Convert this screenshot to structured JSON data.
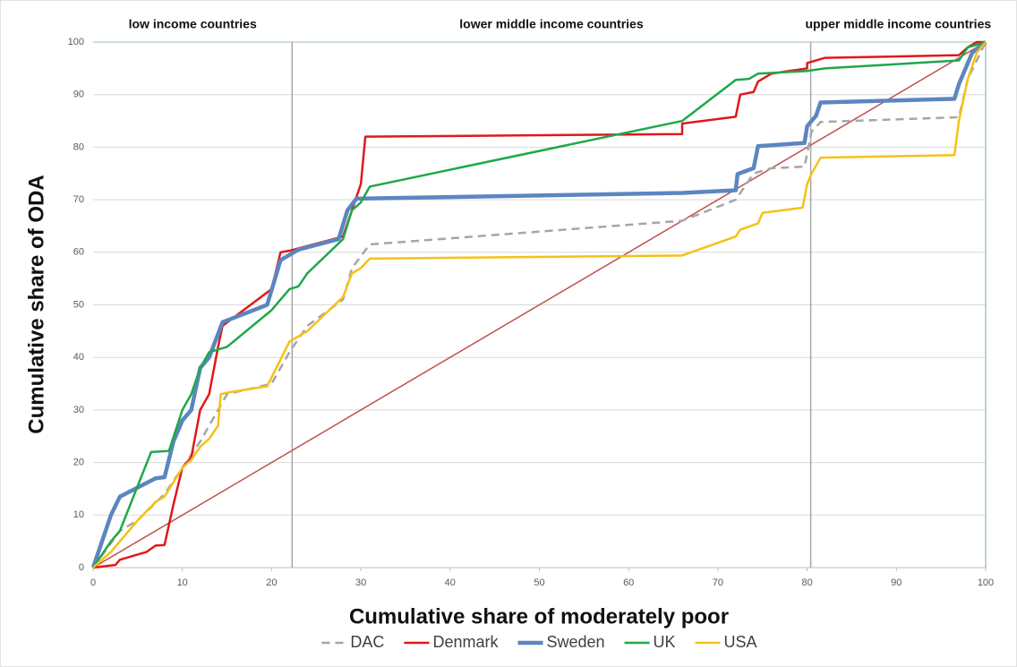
{
  "chart_data": {
    "type": "line",
    "x_label": "Cumulative share  of moderately poor",
    "y_label": "Cumulative share of ODA",
    "annotations": [
      "low income countries",
      "lower middle  income countries",
      "upper middle  income countries"
    ],
    "dividers": [
      22.3,
      80.4
    ],
    "xlim": [
      0,
      100
    ],
    "ylim": [
      0,
      100
    ],
    "xticks": [
      0,
      10,
      20,
      30,
      40,
      50,
      60,
      70,
      80,
      90,
      100
    ],
    "yticks": [
      0,
      10,
      20,
      30,
      40,
      50,
      60,
      70,
      80,
      90,
      100
    ],
    "grid": true,
    "legend": "bottom",
    "series": [
      {
        "color": "#c0504d",
        "line_width": 1.5,
        "x": [
          0,
          100
        ],
        "values": [
          0,
          100
        ]
      },
      {
        "name": "DAC",
        "color": "#a6a6a6",
        "style": "dashed",
        "line_width": 2.5,
        "x": [
          0,
          3,
          5,
          8,
          10,
          12,
          14,
          15,
          20,
          22,
          24,
          28,
          29,
          31,
          66,
          72,
          74,
          76,
          79.7,
          80.5,
          81.5,
          97,
          98,
          100
        ],
        "values": [
          0,
          7,
          9,
          14,
          19,
          24,
          30,
          33,
          35,
          41,
          46,
          51,
          57,
          61.5,
          66,
          70,
          75,
          76,
          76.3,
          83,
          84.8,
          85.7,
          93,
          100
        ]
      },
      {
        "name": "Denmark",
        "color": "#e0181b",
        "line_width": 2.5,
        "x": [
          0,
          2.5,
          3,
          6,
          7,
          8,
          9,
          10,
          11,
          12,
          13,
          14,
          14.5,
          20,
          21,
          22,
          28,
          30,
          30.5,
          66,
          66,
          72,
          72.5,
          74,
          74.5,
          76,
          80,
          80,
          82,
          97,
          98,
          99,
          100
        ],
        "values": [
          0,
          0.5,
          1.5,
          3,
          4.2,
          4.3,
          12,
          19,
          21,
          30,
          33,
          42,
          46,
          53,
          60,
          60.3,
          63,
          73,
          82,
          82.5,
          84.5,
          85.8,
          90,
          90.5,
          92.5,
          94,
          95,
          96,
          97,
          97.5,
          99,
          100,
          100
        ]
      },
      {
        "name": "Sweden",
        "color": "#5b86c0",
        "line_width": 4.5,
        "x": [
          0,
          2,
          3,
          7,
          8,
          9,
          10,
          11,
          12,
          13,
          14.5,
          19.5,
          21,
          22,
          23,
          27.5,
          28.5,
          29.5,
          66,
          72,
          72.2,
          74,
          74.5,
          79.7,
          80,
          81,
          81.5,
          96.5,
          97,
          98,
          98.5,
          100
        ],
        "values": [
          0,
          10,
          13.5,
          17,
          17.2,
          24,
          28,
          30,
          38,
          40,
          46.7,
          50,
          58.5,
          59.5,
          60.5,
          62.5,
          68,
          70.2,
          71.3,
          71.8,
          74.9,
          76,
          80.2,
          80.8,
          84,
          86,
          88.5,
          89.2,
          92,
          96,
          98,
          100
        ]
      },
      {
        "name": "UK",
        "color": "#1ea84a",
        "line_width": 2.5,
        "x": [
          0,
          2,
          3,
          6.5,
          8.5,
          10,
          11,
          12,
          13,
          15,
          20,
          22,
          23,
          24,
          28,
          29,
          30,
          31,
          66,
          72,
          73.5,
          74.5,
          80,
          82,
          97,
          98,
          100
        ],
        "values": [
          0,
          5,
          7,
          22,
          22.2,
          30,
          33,
          38,
          41,
          42,
          49,
          53,
          53.5,
          56,
          62.5,
          68,
          69.5,
          72.5,
          85,
          92.8,
          93,
          94,
          94.5,
          95,
          96.5,
          99,
          100
        ]
      },
      {
        "name": "USA",
        "color": "#f5c116",
        "line_width": 2.5,
        "x": [
          0,
          2,
          3,
          5,
          7,
          8,
          10,
          11,
          12,
          13,
          14,
          14.3,
          15,
          19.5,
          22,
          24,
          28,
          29,
          30,
          31,
          66,
          72,
          72.5,
          74.5,
          75,
          79.5,
          80,
          80.5,
          81.5,
          96.5,
          97,
          98,
          99,
          100
        ],
        "values": [
          0,
          3,
          5,
          9,
          12.5,
          13.5,
          19,
          20.5,
          23,
          24.5,
          27,
          33,
          33.3,
          34.5,
          43,
          45,
          51.5,
          56,
          57,
          58.8,
          59.4,
          63,
          64.3,
          65.5,
          67.5,
          68.5,
          73,
          75,
          78,
          78.5,
          85,
          93,
          98,
          100
        ]
      }
    ]
  }
}
